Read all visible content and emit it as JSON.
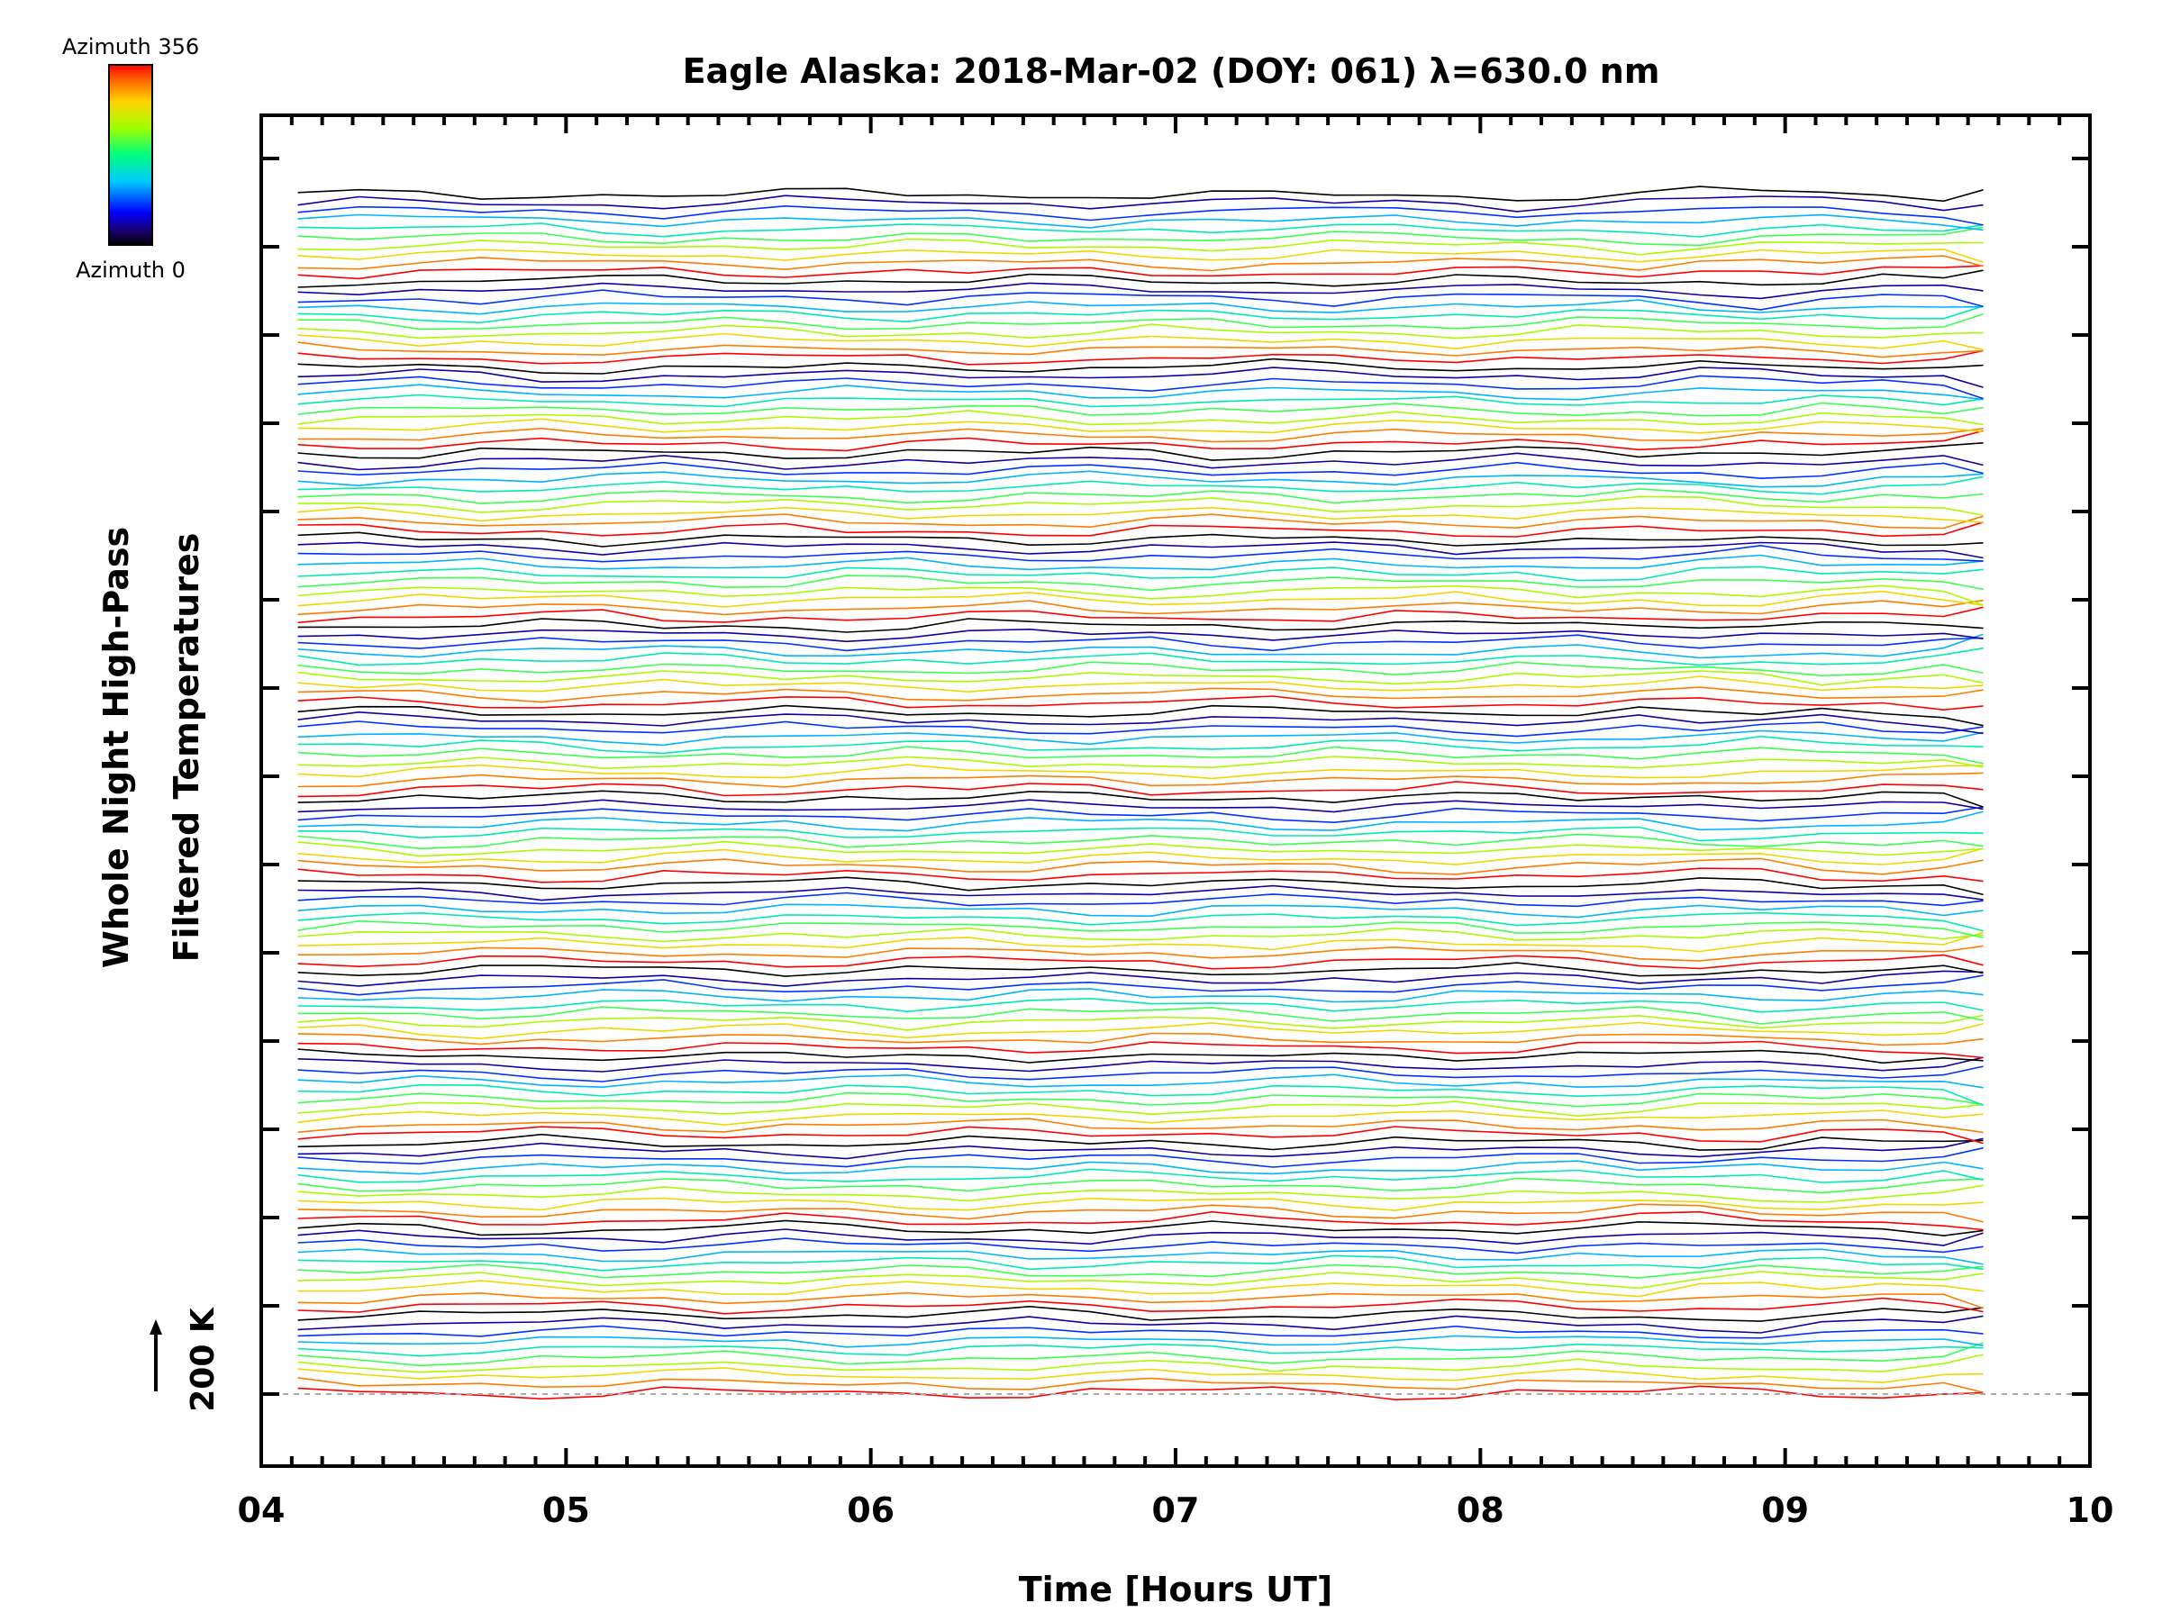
{
  "chart_data": {
    "type": "line",
    "title": "Eagle Alaska: 2018-Mar-02 (DOY: 061) λ=630.0 nm",
    "xlabel": "Time [Hours UT]",
    "ylabel_line1": "Whole Night High-Pass",
    "ylabel_line2": "Filtered Temperatures",
    "x_ticks": [
      "04",
      "05",
      "06",
      "07",
      "08",
      "09",
      "10"
    ],
    "xlim": [
      4,
      10
    ],
    "scale_bar_label": "200 K",
    "scale_bar_value_K": 200,
    "colorbar": {
      "top_label": "Azimuth 356",
      "bottom_label": "Azimuth 0",
      "colormap": "rainbow",
      "range": [
        0,
        356
      ]
    },
    "series_count": 140,
    "band_size": 10,
    "time_start": 4.12,
    "time_end": 9.65,
    "time_step_hours": 0.2,
    "baseline_color": "#aaaaaa",
    "axis_color": "#000000"
  }
}
